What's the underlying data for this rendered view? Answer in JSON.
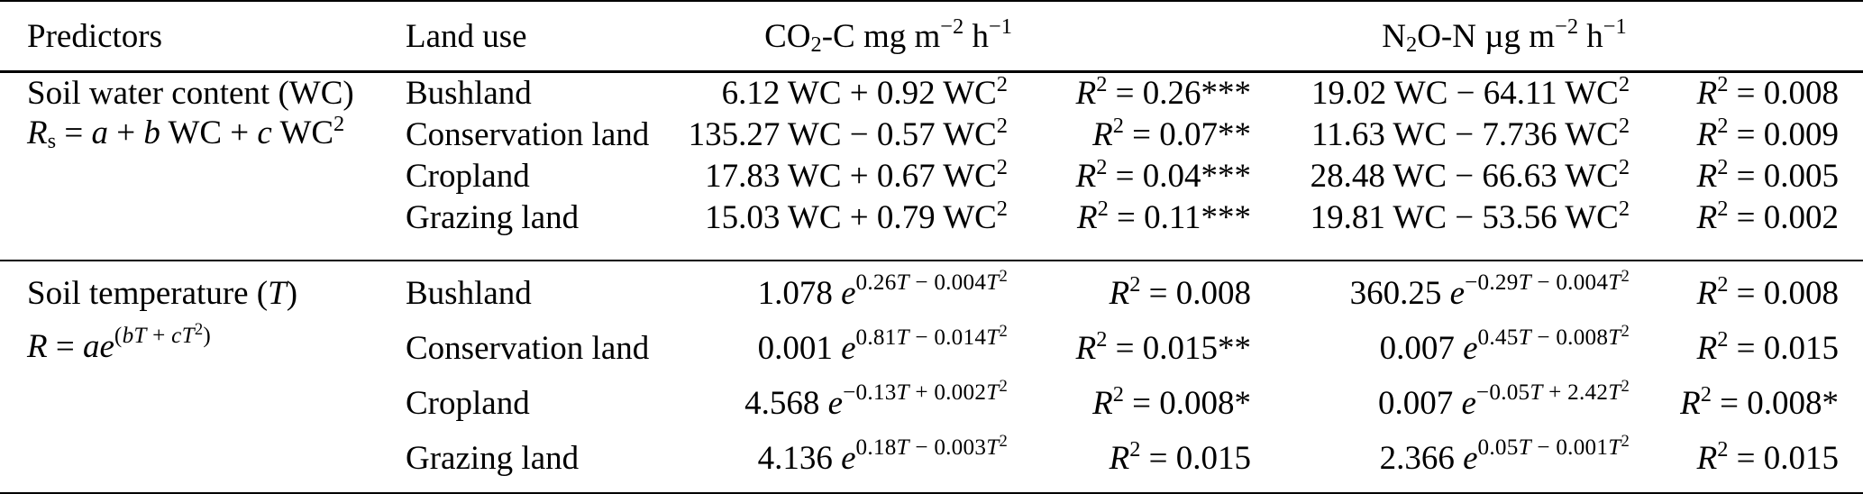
{
  "page": {
    "background_color": "#ffffff",
    "text_color": "#000000"
  },
  "table": {
    "header": {
      "predictors": "Predictors",
      "land_use": "Land use",
      "co2_unit": [
        {
          "t": "CO"
        },
        {
          "b": "2"
        },
        {
          "t": "-C mg m"
        },
        {
          "s": "−2"
        },
        {
          "t": " h"
        },
        {
          "s": "−1"
        }
      ],
      "n2o_unit": [
        {
          "t": "N"
        },
        {
          "b": "2"
        },
        {
          "t": "O-N µg m"
        },
        {
          "s": "−2"
        },
        {
          "t": " h"
        },
        {
          "s": "−1"
        }
      ]
    },
    "sections": [
      {
        "name": [
          {
            "t": "Soil water content (WC)"
          }
        ],
        "equation": [
          {
            "i": "R"
          },
          {
            "b": "s"
          },
          {
            "t": " = "
          },
          {
            "i": "a"
          },
          {
            "t": " + "
          },
          {
            "i": "b"
          },
          {
            "t": " WC + "
          },
          {
            "i": "c"
          },
          {
            "t": " WC"
          },
          {
            "s": "2"
          }
        ],
        "rows": [
          {
            "land_use": "Bushland",
            "co2_eq": [
              {
                "t": "6.12 WC + 0.92 WC"
              },
              {
                "s": "2"
              }
            ],
            "co2_r2": [
              {
                "i": "R"
              },
              {
                "s": "2"
              },
              {
                "t": " = 0.26***"
              }
            ],
            "n2o_eq": [
              {
                "t": "19.02 WC − 64.11 WC"
              },
              {
                "s": "2"
              }
            ],
            "n2o_r2": [
              {
                "i": "R"
              },
              {
                "s": "2"
              },
              {
                "t": " = 0.008"
              }
            ]
          },
          {
            "land_use": "Conservation land",
            "co2_eq": [
              {
                "t": "135.27 WC − 0.57 WC"
              },
              {
                "s": "2"
              }
            ],
            "co2_r2": [
              {
                "i": "R"
              },
              {
                "s": "2"
              },
              {
                "t": " = 0.07**"
              }
            ],
            "n2o_eq": [
              {
                "t": "11.63 WC − 7.736 WC"
              },
              {
                "s": "2"
              }
            ],
            "n2o_r2": [
              {
                "i": "R"
              },
              {
                "s": "2"
              },
              {
                "t": " = 0.009"
              }
            ]
          },
          {
            "land_use": "Cropland",
            "co2_eq": [
              {
                "t": "17.83 WC + 0.67 WC"
              },
              {
                "s": "2"
              }
            ],
            "co2_r2": [
              {
                "i": "R"
              },
              {
                "s": "2"
              },
              {
                "t": " = 0.04***"
              }
            ],
            "n2o_eq": [
              {
                "t": "28.48 WC − 66.63 WC"
              },
              {
                "s": "2"
              }
            ],
            "n2o_r2": [
              {
                "i": "R"
              },
              {
                "s": "2"
              },
              {
                "t": " = 0.005"
              }
            ]
          },
          {
            "land_use": "Grazing land",
            "co2_eq": [
              {
                "t": "15.03 WC + 0.79 WC"
              },
              {
                "s": "2"
              }
            ],
            "co2_r2": [
              {
                "i": "R"
              },
              {
                "s": "2"
              },
              {
                "t": " = 0.11***"
              }
            ],
            "n2o_eq": [
              {
                "t": "19.81 WC − 53.56 WC"
              },
              {
                "s": "2"
              }
            ],
            "n2o_r2": [
              {
                "i": "R"
              },
              {
                "s": "2"
              },
              {
                "t": " = 0.002"
              }
            ]
          }
        ]
      },
      {
        "name": [
          {
            "t": "Soil temperature ("
          },
          {
            "i": "T"
          },
          {
            "t": ")"
          }
        ],
        "equation": [
          {
            "i": "R"
          },
          {
            "t": " = "
          },
          {
            "i": "ae"
          },
          {
            "e": [
              {
                "t": "("
              },
              {
                "i": "bT"
              },
              {
                "t": " + "
              },
              {
                "i": "cT"
              },
              {
                "s": "2"
              },
              {
                "t": ")"
              }
            ]
          }
        ],
        "rows": [
          {
            "land_use": "Bushland",
            "co2_eq": [
              {
                "t": "1.078 "
              },
              {
                "i": "e"
              },
              {
                "e": [
                  {
                    "t": "0.26"
                  },
                  {
                    "i": "T"
                  },
                  {
                    "t": " − 0.004"
                  },
                  {
                    "i": "T"
                  },
                  {
                    "s": "2"
                  }
                ]
              }
            ],
            "co2_r2": [
              {
                "i": "R"
              },
              {
                "s": "2"
              },
              {
                "t": " = 0.008"
              }
            ],
            "n2o_eq": [
              {
                "t": "360.25 "
              },
              {
                "i": "e"
              },
              {
                "e": [
                  {
                    "t": "−0.29"
                  },
                  {
                    "i": "T"
                  },
                  {
                    "t": " − 0.004"
                  },
                  {
                    "i": "T"
                  },
                  {
                    "s": "2"
                  }
                ]
              }
            ],
            "n2o_r2": [
              {
                "i": "R"
              },
              {
                "s": "2"
              },
              {
                "t": " = 0.008"
              }
            ]
          },
          {
            "land_use": "Conservation land",
            "co2_eq": [
              {
                "t": "0.001 "
              },
              {
                "i": "e"
              },
              {
                "e": [
                  {
                    "t": "0.81"
                  },
                  {
                    "i": "T"
                  },
                  {
                    "t": " − 0.014"
                  },
                  {
                    "i": "T"
                  },
                  {
                    "s": "2"
                  }
                ]
              }
            ],
            "co2_r2": [
              {
                "i": "R"
              },
              {
                "s": "2"
              },
              {
                "t": " = 0.015**"
              }
            ],
            "n2o_eq": [
              {
                "t": "0.007 "
              },
              {
                "i": "e"
              },
              {
                "e": [
                  {
                    "t": "0.45"
                  },
                  {
                    "i": "T"
                  },
                  {
                    "t": " − 0.008"
                  },
                  {
                    "i": "T"
                  },
                  {
                    "s": "2"
                  }
                ]
              }
            ],
            "n2o_r2": [
              {
                "i": "R"
              },
              {
                "s": "2"
              },
              {
                "t": " = 0.015"
              }
            ]
          },
          {
            "land_use": "Cropland",
            "co2_eq": [
              {
                "t": "4.568 "
              },
              {
                "i": "e"
              },
              {
                "e": [
                  {
                    "t": "−0.13"
                  },
                  {
                    "i": "T"
                  },
                  {
                    "t": " + 0.002"
                  },
                  {
                    "i": "T"
                  },
                  {
                    "s": "2"
                  }
                ]
              }
            ],
            "co2_r2": [
              {
                "i": "R"
              },
              {
                "s": "2"
              },
              {
                "t": " = 0.008*"
              }
            ],
            "n2o_eq": [
              {
                "t": "0.007 "
              },
              {
                "i": "e"
              },
              {
                "e": [
                  {
                    "t": "−0.05"
                  },
                  {
                    "i": "T"
                  },
                  {
                    "t": " + 2.42"
                  },
                  {
                    "i": "T"
                  },
                  {
                    "s": "2"
                  }
                ]
              }
            ],
            "n2o_r2": [
              {
                "i": "R"
              },
              {
                "s": "2"
              },
              {
                "t": " = 0.008*"
              }
            ]
          },
          {
            "land_use": "Grazing land",
            "co2_eq": [
              {
                "t": "4.136 "
              },
              {
                "i": "e"
              },
              {
                "e": [
                  {
                    "t": "0.18"
                  },
                  {
                    "i": "T"
                  },
                  {
                    "t": " − 0.003"
                  },
                  {
                    "i": "T"
                  },
                  {
                    "s": "2"
                  }
                ]
              }
            ],
            "co2_r2": [
              {
                "i": "R"
              },
              {
                "s": "2"
              },
              {
                "t": " = 0.015"
              }
            ],
            "n2o_eq": [
              {
                "t": "2.366 "
              },
              {
                "i": "e"
              },
              {
                "e": [
                  {
                    "t": "0.05"
                  },
                  {
                    "i": "T"
                  },
                  {
                    "t": " − 0.001"
                  },
                  {
                    "i": "T"
                  },
                  {
                    "s": "2"
                  }
                ]
              }
            ],
            "n2o_r2": [
              {
                "i": "R"
              },
              {
                "s": "2"
              },
              {
                "t": " = 0.015"
              }
            ]
          }
        ]
      }
    ]
  }
}
